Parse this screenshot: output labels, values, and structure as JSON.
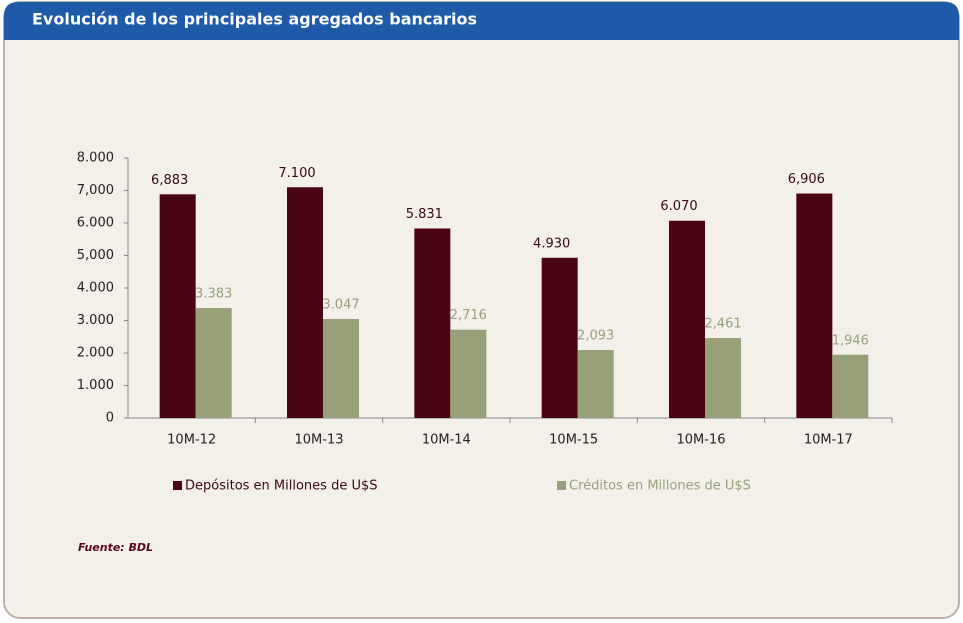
{
  "chart_data": {
    "type": "bar",
    "title": "Evolución de los principales agregados bancarios",
    "categories": [
      "10M-12",
      "10M-13",
      "10M-14",
      "10M-15",
      "10M-16",
      "10M-17"
    ],
    "series": [
      {
        "name": "Depósitos en Millones de U$S",
        "color": "#4a0414",
        "values": [
          6883,
          7100,
          5831,
          4930,
          6070,
          6906
        ],
        "value_labels": [
          "6,883",
          "7.100",
          "5.831",
          "4.930",
          "6.070",
          "6,906"
        ]
      },
      {
        "name": "Créditos en Millones de U$S",
        "color": "#98a07a",
        "values": [
          3383,
          3047,
          2716,
          2093,
          2461,
          1946
        ],
        "value_labels": [
          "3.383",
          "3.047",
          "2,716",
          "2,093",
          "2,461",
          "1,946"
        ]
      }
    ],
    "ylim": [
      0,
      8000
    ],
    "yticks": [
      0,
      {
        "value": 1000,
        "label": "1.000"
      },
      {
        "value": 2000,
        "label": "2.000"
      },
      {
        "value": 3000,
        "label": "3.000"
      },
      {
        "value": 4000,
        "label": "4.000"
      },
      {
        "value": 5000,
        "label": "5,000"
      },
      {
        "value": 6000,
        "label": "6.000"
      },
      {
        "value": 7000,
        "label": "7,000"
      },
      {
        "value": 8000,
        "label": "8.000"
      }
    ],
    "source": "Fuente: BDL"
  }
}
